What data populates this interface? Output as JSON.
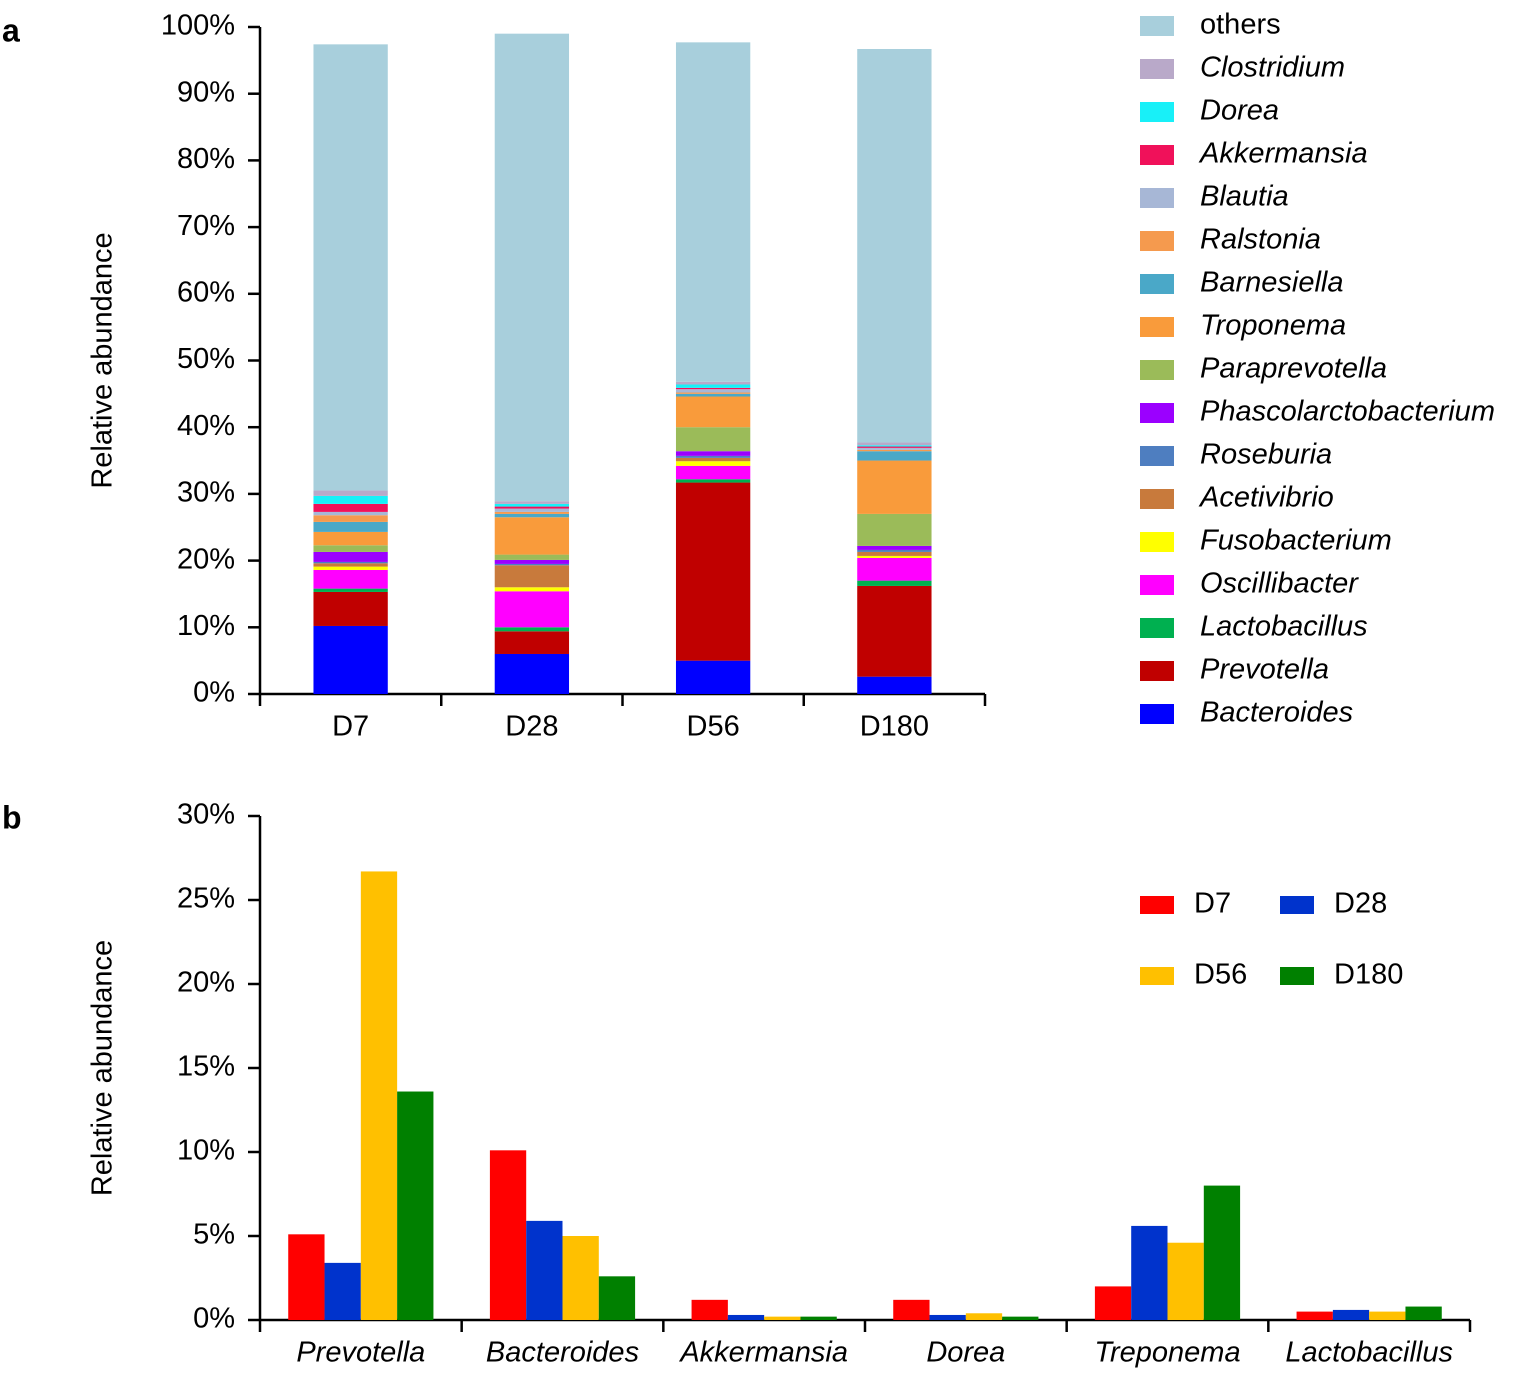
{
  "chart_data": [
    {
      "type": "bar",
      "stacked": true,
      "label": "a",
      "ylabel": "Relative abundance",
      "categories": [
        "D7",
        "D28",
        "D56",
        "D180"
      ],
      "ylim": [
        0,
        100
      ],
      "yticks": [
        {
          "value": 0,
          "label": "0%"
        },
        {
          "value": 10,
          "label": "10%"
        },
        {
          "value": 20,
          "label": "20%"
        },
        {
          "value": 30,
          "label": "30%"
        },
        {
          "value": 40,
          "label": "40%"
        },
        {
          "value": 50,
          "label": "50%"
        },
        {
          "value": 60,
          "label": "60%"
        },
        {
          "value": 70,
          "label": "70%"
        },
        {
          "value": 80,
          "label": "80%"
        },
        {
          "value": 90,
          "label": "90%"
        },
        {
          "value": 100,
          "label": "100%"
        }
      ],
      "legend": "right",
      "series": [
        {
          "name": "Bacteroides",
          "italic": true,
          "color": "#0000ff",
          "values": [
            10.2,
            6.0,
            5.0,
            2.6
          ]
        },
        {
          "name": "Prevotella",
          "italic": true,
          "color": "#c00000",
          "values": [
            5.1,
            3.4,
            26.7,
            13.6
          ]
        },
        {
          "name": "Lactobacillus",
          "italic": true,
          "color": "#00b050",
          "values": [
            0.5,
            0.6,
            0.5,
            0.8
          ]
        },
        {
          "name": "Oscillibacter",
          "italic": true,
          "color": "#ff00ff",
          "values": [
            2.8,
            5.4,
            2.0,
            3.4
          ]
        },
        {
          "name": "Fusobacterium",
          "italic": true,
          "color": "#ffff00",
          "values": [
            0.5,
            0.6,
            0.7,
            0.3
          ]
        },
        {
          "name": "Acetivibrio",
          "italic": true,
          "color": "#c87a3c",
          "values": [
            0.5,
            3.3,
            0.5,
            0.6
          ]
        },
        {
          "name": "Roseburia",
          "italic": true,
          "color": "#4e7ec0",
          "values": [
            0.2,
            0.2,
            0.3,
            0.3
          ]
        },
        {
          "name": "Phascolarctobacterium",
          "italic": true,
          "color": "#9b00ff",
          "values": [
            1.5,
            0.6,
            0.7,
            0.6
          ]
        },
        {
          "name": "Paraprevotella",
          "italic": true,
          "color": "#9bbb59",
          "values": [
            1.0,
            0.8,
            3.6,
            4.8
          ]
        },
        {
          "name": "Troponema",
          "italic": true,
          "color": "#f99b3b",
          "values": [
            2.0,
            5.6,
            4.6,
            8.0
          ]
        },
        {
          "name": "Barnesiella",
          "italic": true,
          "color": "#4aa8c8",
          "values": [
            1.5,
            0.5,
            0.4,
            1.4
          ]
        },
        {
          "name": "Ralstonia",
          "italic": true,
          "color": "#f59a4e",
          "values": [
            1.0,
            0.3,
            0.2,
            0.2
          ]
        },
        {
          "name": "Blautia",
          "italic": true,
          "color": "#a7b7d6",
          "values": [
            0.5,
            0.5,
            0.5,
            0.3
          ]
        },
        {
          "name": "Akkermansia",
          "italic": true,
          "color": "#f0115a",
          "values": [
            1.2,
            0.3,
            0.2,
            0.2
          ]
        },
        {
          "name": "Dorea",
          "italic": true,
          "color": "#18f0f8",
          "values": [
            1.2,
            0.4,
            0.5,
            0.2
          ]
        },
        {
          "name": "Clostridium",
          "italic": true,
          "color": "#b9a9c9",
          "values": [
            0.8,
            0.4,
            0.4,
            0.4
          ]
        },
        {
          "name": "others",
          "italic": false,
          "color": "#a8cfdc",
          "values": [
            66.9,
            70.1,
            50.9,
            59.0
          ]
        }
      ]
    },
    {
      "type": "bar",
      "stacked": false,
      "label": "b",
      "ylabel": "Relative abundance",
      "categories": [
        "Prevotella",
        "Bacteroides",
        "Akkermansia",
        "Dorea",
        "Treponema",
        "Lactobacillus"
      ],
      "category_style": "italic",
      "ylim": [
        0,
        30
      ],
      "yticks": [
        {
          "value": 0,
          "label": "0%"
        },
        {
          "value": 5,
          "label": "5%"
        },
        {
          "value": 10,
          "label": "10%"
        },
        {
          "value": 15,
          "label": "15%"
        },
        {
          "value": 20,
          "label": "20%"
        },
        {
          "value": 25,
          "label": "25%"
        },
        {
          "value": 30,
          "label": "30%"
        }
      ],
      "legend": "upper right",
      "series": [
        {
          "name": "D7",
          "color": "#ff0000",
          "values": [
            5.1,
            10.1,
            1.2,
            1.2,
            2.0,
            0.5
          ]
        },
        {
          "name": "D28",
          "color": "#0033cc",
          "values": [
            3.4,
            5.9,
            0.3,
            0.3,
            5.6,
            0.6
          ]
        },
        {
          "name": "D56",
          "color": "#ffc000",
          "values": [
            26.7,
            5.0,
            0.2,
            0.4,
            4.6,
            0.5
          ]
        },
        {
          "name": "D180",
          "color": "#008000",
          "values": [
            13.6,
            2.6,
            0.2,
            0.2,
            8.0,
            0.8
          ]
        }
      ]
    }
  ]
}
